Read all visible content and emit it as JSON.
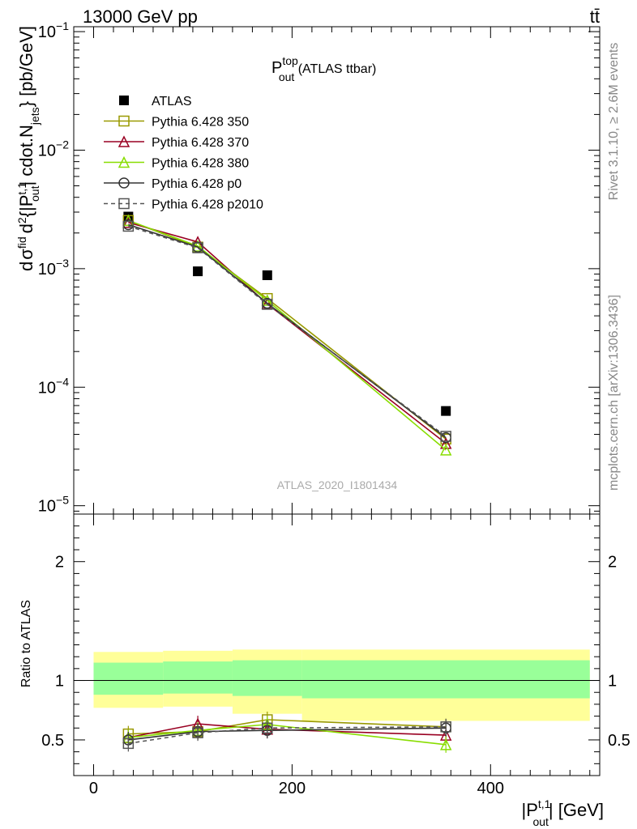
{
  "header": {
    "left": "13000 GeV pp",
    "right": "tt̄"
  },
  "side_text": {
    "rivet": "Rivet 3.1.10, ≥ 2.6M events",
    "mcplots": "mcplots.cern.ch [arXiv:1306.3436]"
  },
  "chart_data": [
    {
      "type": "scatter",
      "title": {
        "main": "P",
        "sup": "top",
        "sub": "out",
        "suffix": " (ATLAS ttbar)"
      },
      "watermark": "ATLAS_2020_I1801434",
      "yscale": "log",
      "ylim": [
        8.5e-06,
        0.11
      ],
      "xlim": [
        -20,
        510
      ],
      "ylabel": {
        "part1": "d",
        "part2": "σ",
        "sup_sigma": "fid",
        "part3": "d",
        "sup_d2": "2",
        "part4": "{|P",
        "sup_p": "t,1",
        "sub_p": "out",
        "part5": "| cdot.N",
        "sub_n": "jets",
        "part6": "} [pb/GeV]"
      },
      "yticks": [
        {
          "base": "10",
          "exp": "−1",
          "value": 0.1
        },
        {
          "base": "10",
          "exp": "−2",
          "value": 0.01
        },
        {
          "base": "10",
          "exp": "−3",
          "value": 0.001
        },
        {
          "base": "10",
          "exp": "−4",
          "value": 0.0001
        },
        {
          "base": "10",
          "exp": "−5",
          "value": 1e-05
        }
      ],
      "legend_position": "top-left",
      "series": [
        {
          "name": "ATLAS",
          "color": "#000000",
          "marker": "filled-square",
          "line": "none",
          "x": [
            35,
            105,
            175,
            355
          ],
          "y": [
            0.00275,
            0.00095,
            0.00088,
            6.3e-05
          ]
        },
        {
          "name": "Pythia 6.428 350",
          "color": "#999900",
          "marker": "open-square",
          "line": "solid",
          "x": [
            35,
            105,
            175,
            355
          ],
          "y": [
            0.00255,
            0.00152,
            0.00056,
            3.65e-05
          ]
        },
        {
          "name": "Pythia 6.428 370",
          "color": "#990022",
          "marker": "open-triangle",
          "line": "solid",
          "x": [
            35,
            105,
            175,
            355
          ],
          "y": [
            0.00245,
            0.00168,
            0.000505,
            3.35e-05
          ]
        },
        {
          "name": "Pythia 6.428 380",
          "color": "#88dd00",
          "marker": "open-triangle",
          "line": "solid",
          "x": [
            35,
            105,
            175,
            355
          ],
          "y": [
            0.00255,
            0.00155,
            0.00054,
            2.95e-05
          ]
        },
        {
          "name": "Pythia 6.428 p0",
          "color": "#333333",
          "marker": "open-circle",
          "line": "solid",
          "x": [
            35,
            105,
            175,
            355
          ],
          "y": [
            0.00235,
            0.00152,
            0.00051,
            3.75e-05
          ]
        },
        {
          "name": "Pythia 6.428 p2010",
          "color": "#555555",
          "marker": "open-square",
          "line": "dashed",
          "x": [
            35,
            105,
            175,
            355
          ],
          "y": [
            0.00228,
            0.0015,
            0.0005,
            3.85e-05
          ]
        }
      ]
    },
    {
      "type": "scatter",
      "ylabel": "Ratio to ATLAS",
      "xlabel": {
        "part1": "|P",
        "sup": "t,1",
        "sub": "out",
        "part2": "| [GeV]"
      },
      "ylim": [
        0.2,
        2.4
      ],
      "xlim": [
        -20,
        510
      ],
      "yticks": [
        "0.5",
        "1",
        "2"
      ],
      "xticks": [
        "0",
        "200",
        "400"
      ],
      "reference_line": 1.0,
      "bands": [
        {
          "x": [
            0,
            70
          ],
          "green": [
            0.88,
            1.15
          ],
          "yellow": [
            0.77,
            1.24
          ]
        },
        {
          "x": [
            70,
            140
          ],
          "green": [
            0.89,
            1.16
          ],
          "yellow": [
            0.78,
            1.25
          ]
        },
        {
          "x": [
            140,
            210
          ],
          "green": [
            0.87,
            1.17
          ],
          "yellow": [
            0.72,
            1.26
          ]
        },
        {
          "x": [
            210,
            500
          ],
          "green": [
            0.85,
            1.17
          ],
          "yellow": [
            0.66,
            1.26
          ]
        }
      ],
      "series": [
        {
          "name": "Pythia 6.428 350",
          "color": "#999900",
          "marker": "open-square",
          "line": "solid",
          "x": [
            35,
            105,
            175,
            355
          ],
          "y": [
            0.55,
            0.57,
            0.67,
            0.61
          ]
        },
        {
          "name": "Pythia 6.428 370",
          "color": "#990022",
          "marker": "open-triangle",
          "line": "solid",
          "x": [
            35,
            105,
            175,
            355
          ],
          "y": [
            0.52,
            0.635,
            0.59,
            0.54
          ]
        },
        {
          "name": "Pythia 6.428 380",
          "color": "#88dd00",
          "marker": "open-triangle",
          "line": "solid",
          "x": [
            35,
            105,
            175,
            355
          ],
          "y": [
            0.52,
            0.58,
            0.63,
            0.46
          ]
        },
        {
          "name": "Pythia 6.428 p0",
          "color": "#333333",
          "marker": "open-circle",
          "line": "solid",
          "x": [
            35,
            105,
            175,
            355
          ],
          "y": [
            0.5,
            0.57,
            0.58,
            0.6
          ]
        },
        {
          "name": "Pythia 6.428 p2010",
          "color": "#555555",
          "marker": "open-square",
          "line": "dashed",
          "x": [
            35,
            105,
            175,
            355
          ],
          "y": [
            0.47,
            0.56,
            0.6,
            0.61
          ]
        }
      ]
    }
  ]
}
